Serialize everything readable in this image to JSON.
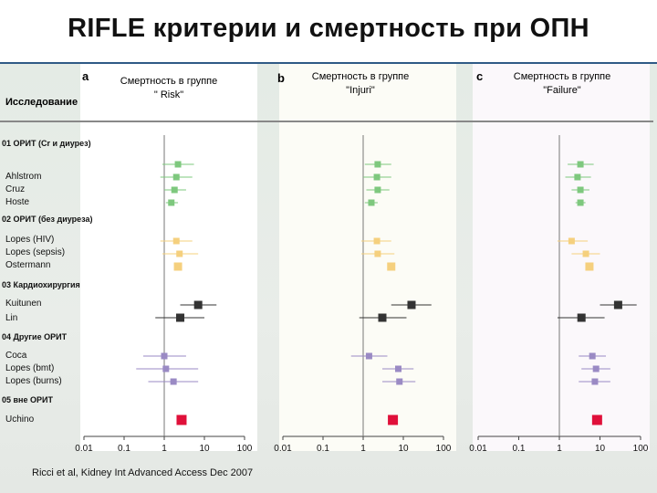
{
  "title": "RIFLE критерии и смертность при ОПН",
  "study_header": "Исследование",
  "credit": "Ricci et al, Kidney Int Advanced Access Dec 2007",
  "chart_data": {
    "type": "forest",
    "x_scale": "log",
    "xlim": [
      0.01,
      100
    ],
    "reference_line": 1,
    "x_ticks": [
      "0.01",
      "0.1",
      "1",
      "10",
      "100"
    ],
    "panels": [
      {
        "letter": "a",
        "title_line1": "Смертность в группе",
        "title_line2": "\" Risk\""
      },
      {
        "letter": "b",
        "title_line1": "Смертность в группе",
        "title_line2": "\"Injuri\""
      },
      {
        "letter": "c",
        "title_line1": "Смертность в группе",
        "title_line2": "\"Failure\""
      }
    ],
    "groups": [
      {
        "label": "01 ОРИТ (Cr и диурез)",
        "color": "#7ec87e",
        "studies": [
          {
            "name": "Ahlstrom",
            "estimates": [
              {
                "point": 2.2,
                "low": 0.9,
                "high": 5.5
              },
              {
                "point": 2.3,
                "low": 1.1,
                "high": 5.0
              },
              {
                "point": 3.3,
                "low": 1.6,
                "high": 7.0
              }
            ]
          },
          {
            "name": "Cruz",
            "estimates": [
              {
                "point": 2.0,
                "low": 0.8,
                "high": 5.0
              },
              {
                "point": 2.2,
                "low": 1.0,
                "high": 5.0
              },
              {
                "point": 2.8,
                "low": 1.4,
                "high": 6.0
              }
            ]
          },
          {
            "name": "Hoste",
            "estimates": [
              {
                "point": 1.8,
                "low": 1.0,
                "high": 3.5
              },
              {
                "point": 2.3,
                "low": 1.2,
                "high": 4.5
              },
              {
                "point": 3.3,
                "low": 2.0,
                "high": 5.5
              }
            ]
          },
          {
            "name": "",
            "estimates": [
              {
                "point": 1.5,
                "low": 1.1,
                "high": 2.2
              },
              {
                "point": 1.6,
                "low": 1.1,
                "high": 2.3
              },
              {
                "point": 3.3,
                "low": 2.5,
                "high": 4.4
              }
            ]
          }
        ]
      },
      {
        "label": "02 ОРИТ (без диуреза)",
        "color": "#f5d07e",
        "studies": [
          {
            "name": "Lopes (HIV)",
            "estimates": [
              {
                "point": 2.0,
                "low": 0.8,
                "high": 5.0
              },
              {
                "point": 2.2,
                "low": 0.9,
                "high": 5.0
              },
              {
                "point": 2.0,
                "low": 0.9,
                "high": 5.0
              }
            ]
          },
          {
            "name": "Lopes (sepsis)",
            "estimates": [
              {
                "point": 2.4,
                "low": 0.9,
                "high": 7.0
              },
              {
                "point": 2.3,
                "low": 0.9,
                "high": 6.0
              },
              {
                "point": 4.5,
                "low": 2.0,
                "high": 10.0
              }
            ]
          },
          {
            "name": "Ostermann",
            "estimates": [
              {
                "point": 2.2,
                "low": 1.8,
                "high": 2.6
              },
              {
                "point": 5.0,
                "low": 4.3,
                "high": 5.7
              },
              {
                "point": 5.5,
                "low": 4.8,
                "high": 6.3
              }
            ]
          }
        ]
      },
      {
        "label": "03 Кардиохирургия",
        "color": "#333333",
        "studies": [
          {
            "name": "Kuitunen",
            "estimates": [
              {
                "point": 7.0,
                "low": 2.5,
                "high": 20.0
              },
              {
                "point": 16.0,
                "low": 5.0,
                "high": 50.0
              },
              {
                "point": 28.0,
                "low": 10.0,
                "high": 80.0
              }
            ]
          },
          {
            "name": "Lin",
            "estimates": [
              {
                "point": 2.5,
                "low": 0.6,
                "high": 10.0
              },
              {
                "point": 3.0,
                "low": 0.8,
                "high": 12.0
              },
              {
                "point": 3.5,
                "low": 0.9,
                "high": 13.0
              }
            ]
          }
        ]
      },
      {
        "label": "04 Другие ОРИТ",
        "color": "#9a8ac4",
        "studies": [
          {
            "name": "Coca",
            "estimates": [
              {
                "point": 1.0,
                "low": 0.3,
                "high": 3.5
              },
              {
                "point": 1.4,
                "low": 0.5,
                "high": 4.0
              },
              {
                "point": 6.5,
                "low": 3.0,
                "high": 14.0
              }
            ]
          },
          {
            "name": "Lopes (bmt)",
            "estimates": [
              {
                "point": 1.1,
                "low": 0.2,
                "high": 7.0
              },
              {
                "point": 7.5,
                "low": 3.0,
                "high": 18.0
              },
              {
                "point": 8.0,
                "low": 3.5,
                "high": 18.0
              }
            ]
          },
          {
            "name": "Lopes (burns)",
            "estimates": [
              {
                "point": 1.7,
                "low": 0.4,
                "high": 7.0
              },
              {
                "point": 8.0,
                "low": 3.0,
                "high": 20.0
              },
              {
                "point": 7.5,
                "low": 3.0,
                "high": 18.0
              }
            ]
          }
        ]
      },
      {
        "label": "05 вне ОРИТ",
        "color": "#e0103a",
        "studies": [
          {
            "name": "Uchino",
            "estimates": [
              {
                "point": 2.7,
                "low": 2.3,
                "high": 3.2
              },
              {
                "point": 5.5,
                "low": 4.8,
                "high": 6.3
              },
              {
                "point": 8.5,
                "low": 7.4,
                "high": 9.7
              }
            ]
          }
        ]
      }
    ]
  }
}
